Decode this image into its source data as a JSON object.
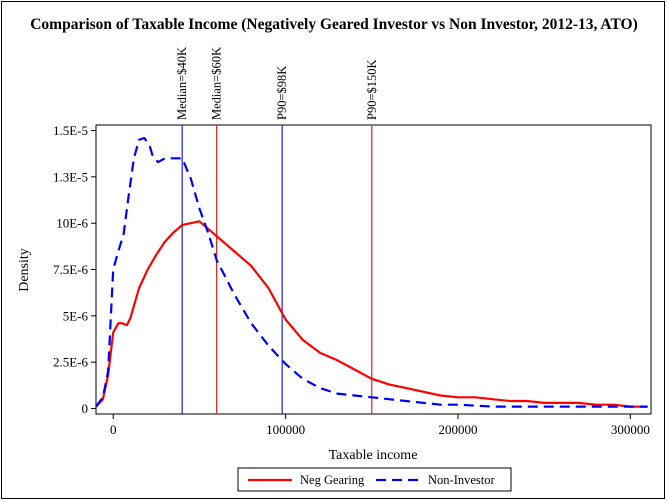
{
  "chart_data": {
    "type": "line",
    "title": "Comparison of Taxable Income (Negatively Geared Investor vs Non Investor, 2012-13, ATO)",
    "xlabel": "Taxable income",
    "ylabel": "Density",
    "xlim": [
      -10000,
      312000
    ],
    "ylim": [
      -3e-07,
      1.53e-05
    ],
    "x_ticks": [
      0,
      100000,
      200000,
      300000
    ],
    "x_tick_labels": [
      "0",
      "100000",
      "200000",
      "300000"
    ],
    "y_ticks": [
      0,
      2.5e-06,
      5e-06,
      7.5e-06,
      1e-05,
      1.25e-05,
      1.5e-05
    ],
    "y_tick_labels": [
      "0",
      "2.5E-6",
      "5E-6",
      "7.5E-6",
      "10E-6",
      "1.3E-5",
      "1.5E-5"
    ],
    "grid": false,
    "legend_position": "bottom",
    "reference_lines": [
      {
        "x": 40000,
        "label": "Median=$40K",
        "color": "#2020d0"
      },
      {
        "x": 60000,
        "label": "Median=$60K",
        "color": "#e02020"
      },
      {
        "x": 98000,
        "label": "P90=$98K",
        "color": "#2020d0"
      },
      {
        "x": 150000,
        "label": "P90=$150K",
        "color": "#e02020"
      }
    ],
    "series": [
      {
        "name": "Neg Gearing",
        "color": "#ff0000",
        "dash": "solid",
        "x": [
          -10000,
          -6000,
          -3000,
          0,
          3000,
          5000,
          8000,
          10000,
          15000,
          20000,
          25000,
          30000,
          35000,
          40000,
          45000,
          50000,
          55000,
          60000,
          70000,
          80000,
          90000,
          100000,
          110000,
          120000,
          130000,
          140000,
          150000,
          160000,
          170000,
          180000,
          190000,
          200000,
          210000,
          220000,
          230000,
          240000,
          250000,
          260000,
          270000,
          280000,
          290000,
          300000,
          310000
        ],
        "y": [
          1e-07,
          5e-07,
          1.8e-06,
          4.1e-06,
          4.6e-06,
          4.6e-06,
          4.5e-06,
          4.9e-06,
          6.5e-06,
          7.5e-06,
          8.3e-06,
          9e-06,
          9.5e-06,
          9.9e-06,
          1e-05,
          1.01e-05,
          9.7e-06,
          9.3e-06,
          8.5e-06,
          7.7e-06,
          6.5e-06,
          4.8e-06,
          3.7e-06,
          3e-06,
          2.6e-06,
          2.1e-06,
          1.6e-06,
          1.3e-06,
          1.1e-06,
          9e-07,
          7e-07,
          6e-07,
          6e-07,
          5e-07,
          4e-07,
          4e-07,
          3e-07,
          3e-07,
          3e-07,
          2e-07,
          2e-07,
          1e-07,
          1e-07
        ]
      },
      {
        "name": "Non-Investor",
        "color": "#0000ff",
        "dash": "dashed",
        "x": [
          -10000,
          -6000,
          -3000,
          0,
          3000,
          6000,
          9000,
          12000,
          15000,
          18000,
          21000,
          23000,
          26000,
          30000,
          35000,
          40000,
          45000,
          50000,
          55000,
          60000,
          70000,
          80000,
          90000,
          100000,
          110000,
          120000,
          130000,
          140000,
          150000,
          160000,
          170000,
          180000,
          190000,
          200000,
          220000,
          240000,
          260000,
          280000,
          300000,
          310000
        ],
        "y": [
          1e-07,
          6e-07,
          2e-06,
          7.5e-06,
          8.5e-06,
          9.4e-06,
          1.15e-05,
          1.35e-05,
          1.45e-05,
          1.46e-05,
          1.42e-05,
          1.36e-05,
          1.33e-05,
          1.35e-05,
          1.35e-05,
          1.35e-05,
          1.24e-05,
          1.08e-05,
          9.5e-06,
          8e-06,
          6.2e-06,
          4.6e-06,
          3.4e-06,
          2.4e-06,
          1.6e-06,
          1.1e-06,
          8e-07,
          7e-07,
          6e-07,
          5e-07,
          4e-07,
          3e-07,
          2e-07,
          2e-07,
          1e-07,
          1e-07,
          1e-07,
          1e-07,
          1e-07,
          1e-07
        ]
      }
    ]
  }
}
